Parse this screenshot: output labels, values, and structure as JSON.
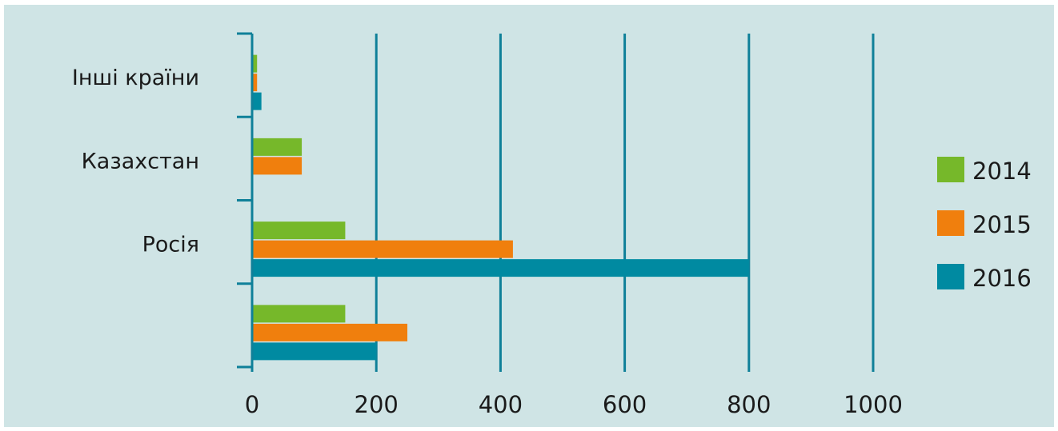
{
  "chart_data": {
    "type": "bar",
    "orientation": "horizontal",
    "categories": [
      "Інші країни",
      "Казахстан",
      "Росія",
      ""
    ],
    "series": [
      {
        "name": "2014",
        "color": "#76b82a",
        "values": [
          8,
          80,
          150,
          150
        ]
      },
      {
        "name": "2015",
        "color": "#f07f0d",
        "values": [
          8,
          80,
          420,
          250
        ]
      },
      {
        "name": "2016",
        "color": "#008aa1",
        "values": [
          15,
          0,
          800,
          200
        ]
      }
    ],
    "x_ticks": [
      "0",
      "200",
      "400",
      "600",
      "800",
      "1000"
    ],
    "xlim": [
      0,
      1000
    ],
    "grid": true,
    "legend_position": "right",
    "axis_color": "#0f8099"
  }
}
